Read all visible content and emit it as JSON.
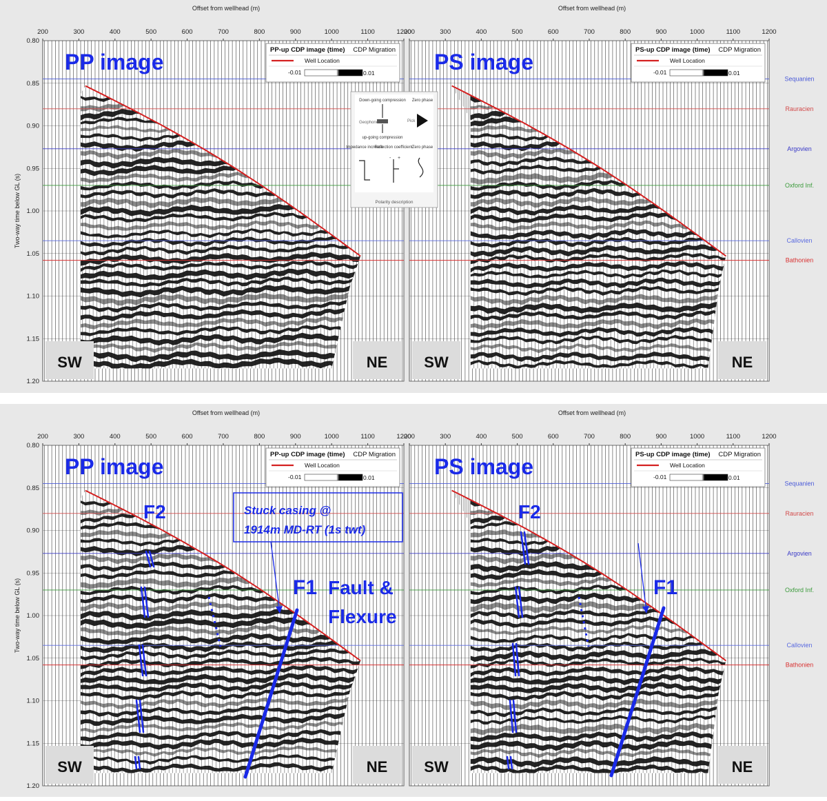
{
  "panels": [
    {
      "id": "top",
      "fault_annotations": false,
      "left": {
        "image_label": "PP image",
        "legend_title": "PP-up CDP image (time)",
        "legend_method": "CDP Migration",
        "legend_well": "Well Location",
        "legend_min": "-0.01",
        "legend_max": "0.01",
        "sw": "SW",
        "ne": "NE"
      },
      "right": {
        "image_label": "PS image",
        "legend_title": "PS-up CDP image (time)",
        "legend_method": "CDP Migration",
        "legend_well": "Well Location",
        "legend_min": "-0.01",
        "legend_max": "0.01",
        "sw": "SW",
        "ne": "NE"
      }
    },
    {
      "id": "bottom",
      "fault_annotations": true,
      "left": {
        "image_label": "PP image",
        "legend_title": "PP-up CDP image (time)",
        "legend_method": "CDP Migration",
        "legend_well": "Well Location",
        "legend_min": "-0.01",
        "legend_max": "0.01",
        "sw": "SW",
        "ne": "NE"
      },
      "right": {
        "image_label": "PS image",
        "legend_title": "PS-up CDP image (time)",
        "legend_method": "CDP Migration",
        "legend_well": "Well Location",
        "legend_min": "-0.01",
        "legend_max": "0.01",
        "sw": "SW",
        "ne": "NE"
      }
    }
  ],
  "axes": {
    "x_label": "Offset from wellhead (m)",
    "y_label": "Two-way time below GL (s)",
    "x_ticks": [
      "200",
      "300",
      "400",
      "500",
      "600",
      "700",
      "800",
      "900",
      "1000",
      "1100",
      "1200"
    ],
    "x_range": [
      200,
      1200
    ],
    "y_ticks": [
      "0.80",
      "0.85",
      "0.90",
      "0.95",
      "1.00",
      "1.05",
      "1.10",
      "1.15",
      "1.20"
    ],
    "y_range": [
      0.8,
      1.2
    ]
  },
  "horizons": [
    {
      "name": "Sequanien",
      "time": 0.845,
      "color": "#4a5ad8"
    },
    {
      "name": "Rauracien",
      "time": 0.88,
      "color": "#d24a4a"
    },
    {
      "name": "Argovien",
      "time": 0.927,
      "color": "#3a3ac8"
    },
    {
      "name": "Oxford Inf.",
      "time": 0.97,
      "color": "#3a9a3a"
    },
    {
      "name": "Callovien",
      "time": 1.035,
      "color": "#5a6ae0"
    },
    {
      "name": "Bathonien",
      "time": 1.058,
      "color": "#d83030"
    }
  ],
  "polarity_inset": {
    "title": "Polarity description",
    "down_going": "Down-going compression",
    "zero_phase_1": "Zero phase",
    "geophone": "Geophone",
    "pick": "Pick",
    "up_going": "up-going compression",
    "impedance": "Impedance increase",
    "reflection": "Reflection coefficient",
    "zero_phase_2": "Zero phase",
    "minus": "-",
    "plus": "+"
  },
  "annotations": {
    "f1": "F1",
    "f2": "F2",
    "fault_flexure_1": "Fault &",
    "fault_flexure_2": "Flexure",
    "stuck_casing_1": "Stuck casing @",
    "stuck_casing_2": "1914m MD-RT (1s twt)"
  },
  "colors": {
    "well_line": "#d42020",
    "annotation_blue": "#1a2ae8",
    "panel_bg": "#e8e8e8",
    "corner_box": "#dcdcdc"
  }
}
